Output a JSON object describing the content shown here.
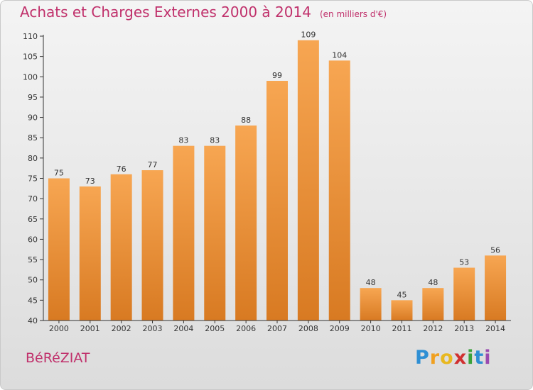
{
  "title": "Achats et Charges Externes 2000 à 2014",
  "subtitle": "(en milliers d'€)",
  "commune": "BéRéZIAT",
  "brand": {
    "text": "Proxiti",
    "letters": [
      "P",
      "r",
      "o",
      "x",
      "i",
      "t",
      "i"
    ],
    "colors": [
      "#2e8fd4",
      "#f0a020",
      "#e8b820",
      "#d03030",
      "#3aa23a",
      "#2e8fd4",
      "#9a4ab0"
    ]
  },
  "colors": {
    "title": "#c0306b",
    "bar_top": "#f7a652",
    "bar_bottom": "#d87a22",
    "axis": "#333333"
  },
  "chart_data": {
    "type": "bar",
    "title": "Achats et Charges Externes 2000 à 2014",
    "subtitle": "(en milliers d'€)",
    "xlabel": "",
    "ylabel": "",
    "categories": [
      "2000",
      "2001",
      "2002",
      "2003",
      "2004",
      "2005",
      "2006",
      "2007",
      "2008",
      "2009",
      "2010",
      "2011",
      "2012",
      "2013",
      "2014"
    ],
    "values": [
      75,
      73,
      76,
      77,
      83,
      83,
      88,
      99,
      109,
      104,
      48,
      45,
      48,
      53,
      56
    ],
    "ylim": [
      40,
      110
    ],
    "yticks": [
      40,
      45,
      50,
      55,
      60,
      65,
      70,
      75,
      80,
      85,
      90,
      95,
      100,
      105,
      110
    ],
    "grid": false,
    "legend": "none"
  }
}
